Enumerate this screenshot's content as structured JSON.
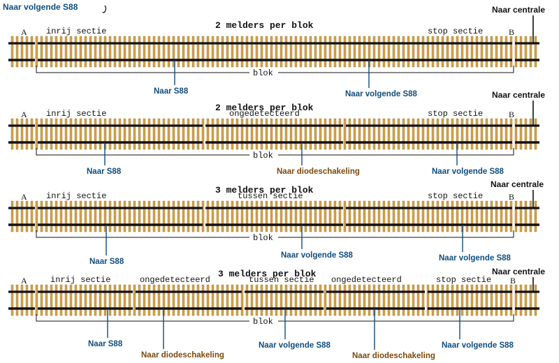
{
  "colors": {
    "rail": "#111111",
    "sleeper": "#d4a24a",
    "sleeper_edge": "#9a6b1f",
    "wire_blue": "#0e4d7e",
    "text_blue": "#0e4d7e",
    "text_brown": "#7a4a0a",
    "text_black": "#111111"
  },
  "top_label": "Naar  volgende S88",
  "centrale_label": "Naar centrale",
  "blok_label": "blok",
  "end_a": "A",
  "end_b": "B",
  "diagrams": [
    {
      "title": "2 melders per blok",
      "sections": [
        {
          "label": "inrij sectie"
        },
        {
          "label": "stop sectie"
        }
      ],
      "connections": [
        {
          "label": "Naar S88",
          "color": "blue"
        },
        {
          "label": "Naar  volgende S88",
          "color": "blue"
        }
      ]
    },
    {
      "title": "2 melders  per blok",
      "sections": [
        {
          "label": "inrij sectie"
        },
        {
          "label": "ongedetecteerd"
        },
        {
          "label": "stop sectie"
        }
      ],
      "connections": [
        {
          "label": "Naar S88",
          "color": "blue"
        },
        {
          "label": "Naar diodeschakeling",
          "color": "brown"
        },
        {
          "label": "Naar  volgende S88",
          "color": "blue"
        }
      ]
    },
    {
      "title": "3 melders  per blok",
      "sections": [
        {
          "label": "inrij sectie"
        },
        {
          "label": "tussen sectie"
        },
        {
          "label": "stop sectie"
        }
      ],
      "connections": [
        {
          "label": "Naar S88",
          "color": "blue"
        },
        {
          "label": "Naar  volgende S88",
          "color": "blue"
        },
        {
          "label": "Naar  volgende S88",
          "color": "blue"
        }
      ]
    },
    {
      "title": "3 melders  per blok",
      "sections": [
        {
          "label": "inrij sectie"
        },
        {
          "label": "ongedetecteerd"
        },
        {
          "label": "tussen sectie"
        },
        {
          "label": "ongedetecteerd"
        },
        {
          "label": "stop sectie"
        }
      ],
      "connections": [
        {
          "label": "Naar S88",
          "color": "blue"
        },
        {
          "label": "Naar diodeschakeling",
          "color": "brown"
        },
        {
          "label": "Naar  volgende S88",
          "color": "blue"
        },
        {
          "label": "Naar diodeschakeling",
          "color": "brown"
        },
        {
          "label": "Naar  volgende S88",
          "color": "blue"
        }
      ]
    }
  ]
}
